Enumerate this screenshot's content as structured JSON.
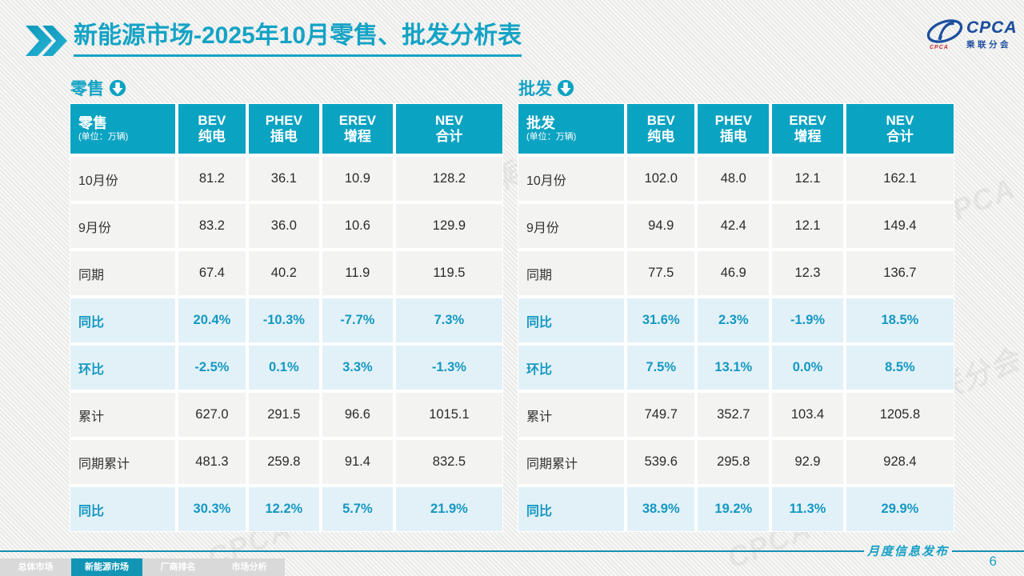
{
  "slide": {
    "title": {
      "highlight": "新能源市场",
      "rest": "-2025年10月零售、批发分析表"
    },
    "logo": {
      "main": "CPCA",
      "sub": "乘联分会",
      "mini": "CPCA"
    },
    "watermark_text": "CPCA 乘联分会",
    "footer": {
      "publish_label": "月度信息发布",
      "page_number": "6",
      "tabs": [
        {
          "label": "总体市场",
          "active": false
        },
        {
          "label": "新能源市场",
          "active": true
        },
        {
          "label": "厂商排名",
          "active": false
        },
        {
          "label": "市场分析",
          "active": false
        }
      ]
    }
  },
  "colors": {
    "accent_teal": "#0ba3c2",
    "title_teal": "#14a3c5",
    "percent_text": "#1598c2",
    "percent_row_bg": "#e2f1f8",
    "logo_blue": "#1d4f9e",
    "inactive_tab": "#d9d9d9"
  },
  "tables": [
    {
      "name": "零售",
      "unit": "(单位：万辆)",
      "columns": [
        {
          "en": "BEV",
          "zh": "纯电"
        },
        {
          "en": "PHEV",
          "zh": "插电"
        },
        {
          "en": "EREV",
          "zh": "增程"
        },
        {
          "en": "NEV",
          "zh": "合计"
        }
      ],
      "rows": [
        {
          "label": "10月份",
          "type": "normal",
          "values": [
            "81.2",
            "36.1",
            "10.9",
            "128.2"
          ]
        },
        {
          "label": "9月份",
          "type": "normal",
          "values": [
            "83.2",
            "36.0",
            "10.6",
            "129.9"
          ]
        },
        {
          "label": "同期",
          "type": "normal",
          "values": [
            "67.4",
            "40.2",
            "11.9",
            "119.5"
          ]
        },
        {
          "label": "同比",
          "type": "percent",
          "values": [
            "20.4%",
            "-10.3%",
            "-7.7%",
            "7.3%"
          ]
        },
        {
          "label": "环比",
          "type": "percent",
          "values": [
            "-2.5%",
            "0.1%",
            "3.3%",
            "-1.3%"
          ]
        },
        {
          "label": "累计",
          "type": "normal",
          "values": [
            "627.0",
            "291.5",
            "96.6",
            "1015.1"
          ]
        },
        {
          "label": "同期累计",
          "type": "normal",
          "values": [
            "481.3",
            "259.8",
            "91.4",
            "832.5"
          ]
        },
        {
          "label": "同比",
          "type": "percent",
          "values": [
            "30.3%",
            "12.2%",
            "5.7%",
            "21.9%"
          ]
        }
      ]
    },
    {
      "name": "批发",
      "unit": "(单位：万辆)",
      "columns": [
        {
          "en": "BEV",
          "zh": "纯电"
        },
        {
          "en": "PHEV",
          "zh": "插电"
        },
        {
          "en": "EREV",
          "zh": "增程"
        },
        {
          "en": "NEV",
          "zh": "合计"
        }
      ],
      "rows": [
        {
          "label": "10月份",
          "type": "normal",
          "values": [
            "102.0",
            "48.0",
            "12.1",
            "162.1"
          ]
        },
        {
          "label": "9月份",
          "type": "normal",
          "values": [
            "94.9",
            "42.4",
            "12.1",
            "149.4"
          ]
        },
        {
          "label": "同期",
          "type": "normal",
          "values": [
            "77.5",
            "46.9",
            "12.3",
            "136.7"
          ]
        },
        {
          "label": "同比",
          "type": "percent",
          "values": [
            "31.6%",
            "2.3%",
            "-1.9%",
            "18.5%"
          ]
        },
        {
          "label": "环比",
          "type": "percent",
          "values": [
            "7.5%",
            "13.1%",
            "0.0%",
            "8.5%"
          ]
        },
        {
          "label": "累计",
          "type": "normal",
          "values": [
            "749.7",
            "352.7",
            "103.4",
            "1205.8"
          ]
        },
        {
          "label": "同期累计",
          "type": "normal",
          "values": [
            "539.6",
            "295.8",
            "92.9",
            "928.4"
          ]
        },
        {
          "label": "同比",
          "type": "percent",
          "values": [
            "38.9%",
            "19.2%",
            "11.3%",
            "29.9%"
          ]
        }
      ]
    }
  ]
}
